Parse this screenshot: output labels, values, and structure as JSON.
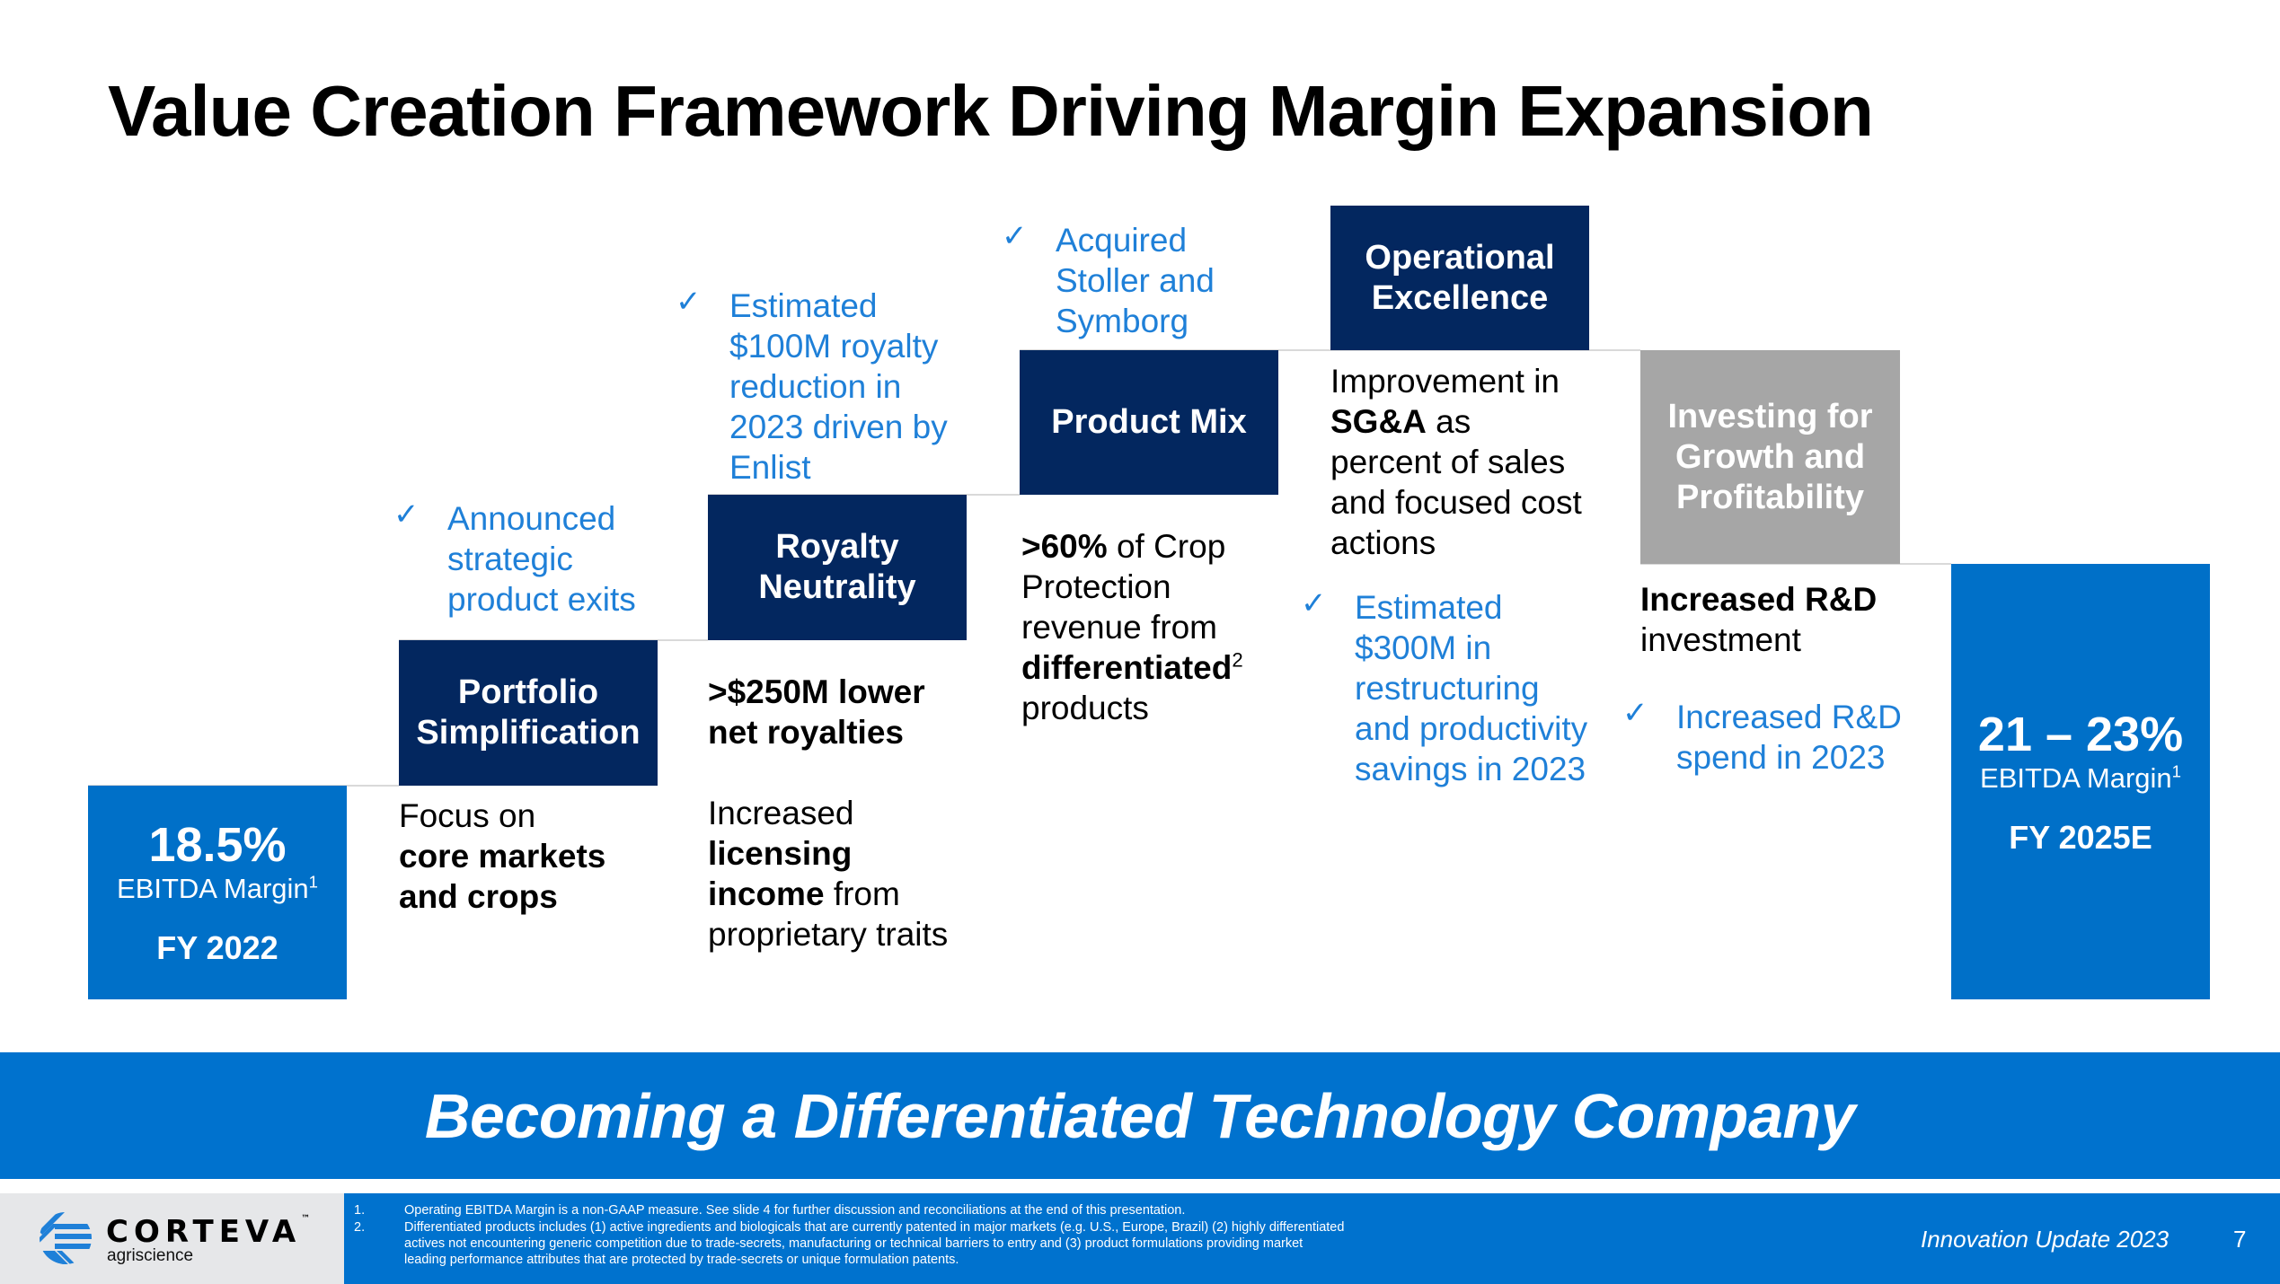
{
  "slide": {
    "title": "Value Creation Framework Driving Margin Expansion",
    "banner": "Becoming a Differentiated Technology Company"
  },
  "start": {
    "value": "18.5%",
    "label": "EBITDA Margin",
    "label_sup": "1",
    "period": "FY 2022"
  },
  "end": {
    "value": "21 – 23%",
    "label": "EBITDA Margin",
    "label_sup": "1",
    "period": "FY 2025E"
  },
  "steps": [
    {
      "title_lines": [
        "Portfolio",
        "Simplification"
      ],
      "check": [
        "Announced",
        "strategic",
        "product exits"
      ],
      "desc": [
        {
          "parts": [
            {
              "t": "Focus on",
              "b": false
            }
          ]
        },
        {
          "parts": [
            {
              "t": "core markets",
              "b": true
            }
          ]
        },
        {
          "parts": [
            {
              "t": "and crops",
              "b": true
            }
          ]
        }
      ]
    },
    {
      "title_lines": [
        "Royalty",
        "Neutrality"
      ],
      "check": [
        "Estimated",
        "$100M royalty",
        "reduction in",
        "2023 driven by",
        "Enlist"
      ],
      "desc": [
        {
          "parts": [
            {
              "t": ">$250M lower",
              "b": true
            }
          ]
        },
        {
          "parts": [
            {
              "t": "net royalties",
              "b": true
            }
          ]
        },
        {
          "parts": [
            {
              "t": "",
              "b": false
            }
          ]
        },
        {
          "parts": [
            {
              "t": "Increased",
              "b": false
            }
          ]
        },
        {
          "parts": [
            {
              "t": "licensing",
              "b": true
            }
          ]
        },
        {
          "parts": [
            {
              "t": "income",
              "b": true
            },
            {
              "t": " from",
              "b": false
            }
          ]
        },
        {
          "parts": [
            {
              "t": "proprietary traits",
              "b": false
            }
          ]
        }
      ]
    },
    {
      "title_lines": [
        "Product Mix"
      ],
      "check": [
        "Acquired",
        "Stoller and",
        "Symborg"
      ],
      "desc": [
        {
          "parts": [
            {
              "t": ">60%",
              "b": true
            },
            {
              "t": " of Crop",
              "b": false
            }
          ]
        },
        {
          "parts": [
            {
              "t": "Protection",
              "b": false
            }
          ]
        },
        {
          "parts": [
            {
              "t": "revenue from",
              "b": false
            }
          ]
        },
        {
          "parts": [
            {
              "t": "differentiated",
              "b": true,
              "sup": "2"
            }
          ]
        },
        {
          "parts": [
            {
              "t": "products",
              "b": false
            }
          ]
        }
      ]
    },
    {
      "title_lines": [
        "Operational",
        "Excellence"
      ],
      "desc": [
        {
          "parts": [
            {
              "t": "Improvement in",
              "b": false
            }
          ]
        },
        {
          "parts": [
            {
              "t": "SG&A",
              "b": true
            },
            {
              "t": " as",
              "b": false
            }
          ]
        },
        {
          "parts": [
            {
              "t": "percent of sales",
              "b": false
            }
          ]
        },
        {
          "parts": [
            {
              "t": "and focused cost",
              "b": false
            }
          ]
        },
        {
          "parts": [
            {
              "t": "actions",
              "b": false
            }
          ]
        }
      ],
      "check": [
        "Estimated",
        "$300M in",
        "restructuring",
        "and productivity",
        "savings in 2023"
      ]
    },
    {
      "title_lines": [
        "Investing for",
        "Growth and",
        "Profitability"
      ],
      "desc": [
        {
          "parts": [
            {
              "t": "Increased R&D",
              "b": true
            }
          ]
        },
        {
          "parts": [
            {
              "t": "investment",
              "b": false
            }
          ]
        }
      ],
      "check": [
        "Increased R&D",
        "spend in 2023"
      ]
    }
  ],
  "footer": {
    "logo_name": "CORTEVA",
    "logo_tm": "™",
    "logo_sub": "agriscience",
    "footnotes": [
      {
        "num": "1.",
        "text": "Operating EBITDA Margin is a non-GAAP measure. See slide 4 for further discussion and reconciliations at the end of this presentation."
      },
      {
        "num": "2.",
        "text": "Differentiated products includes (1) active ingredients and biologicals that are currently patented in major markets (e.g. U.S., Europe, Brazil) (2) highly differentiated actives not encountering generic competition due to trade-secrets, manufacturing or technical barriers to entry and (3) product formulations providing market leading performance attributes that are protected by trade-secrets or unique formulation patents."
      }
    ],
    "presentation": "Innovation Update 2023",
    "page": "7"
  },
  "icons": {
    "check": "✓"
  },
  "colors": {
    "navy": "#03275f",
    "blue": "#0070c8",
    "grey": "#a6a6a6",
    "check_text": "#1f80d8",
    "footer_grey": "#e6e7e9"
  }
}
